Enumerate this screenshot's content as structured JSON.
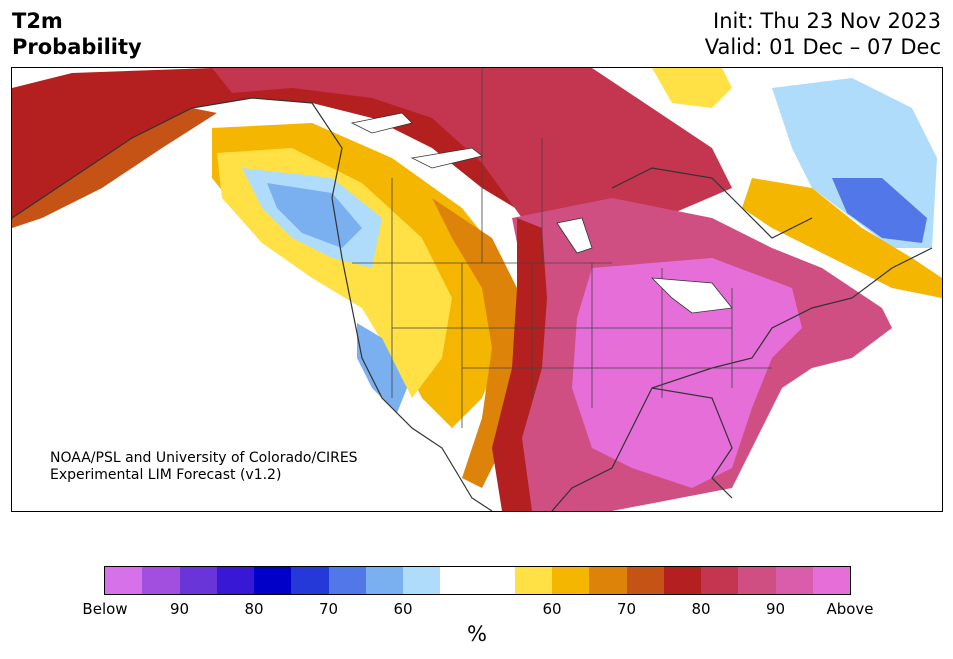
{
  "header": {
    "title_line1": "T2m",
    "title_line2": "Probability",
    "init": "Init: Thu 23 Nov 2023",
    "valid": "Valid: 01 Dec – 07 Dec"
  },
  "credit": {
    "line1": "NOAA/PSL and University of Colorado/CIRES",
    "line2": "Experimental LIM Forecast (v1.2)"
  },
  "colorbar": {
    "colors": [
      "#d771ea",
      "#a24fdf",
      "#6a35d8",
      "#3818d4",
      "#0000c8",
      "#2538d8",
      "#5277e8",
      "#7ab0f0",
      "#aedcfa",
      "#ffffff",
      "#ffffff",
      "#ffe045",
      "#f4b600",
      "#de8309",
      "#c55316",
      "#b41f1f",
      "#c4354f",
      "#cf4f82",
      "#d95daa",
      "#e56ed8"
    ],
    "ticks": [
      "Below",
      "90",
      "80",
      "70",
      "60",
      "60",
      "70",
      "80",
      "90",
      "Above"
    ],
    "unit": "%"
  },
  "map_colors": {
    "above_max": "#e56ed8",
    "above_90": "#d95daa",
    "above_85": "#cf4f82",
    "above_80": "#c4354f",
    "above_75": "#b41f1f",
    "above_70": "#c55316",
    "above_65": "#de8309",
    "above_60": "#f4b600",
    "above_55": "#ffe045",
    "below_55": "#aedcfa",
    "below_60": "#7ab0f0",
    "below_65": "#5277e8",
    "below_70": "#2538d8"
  }
}
